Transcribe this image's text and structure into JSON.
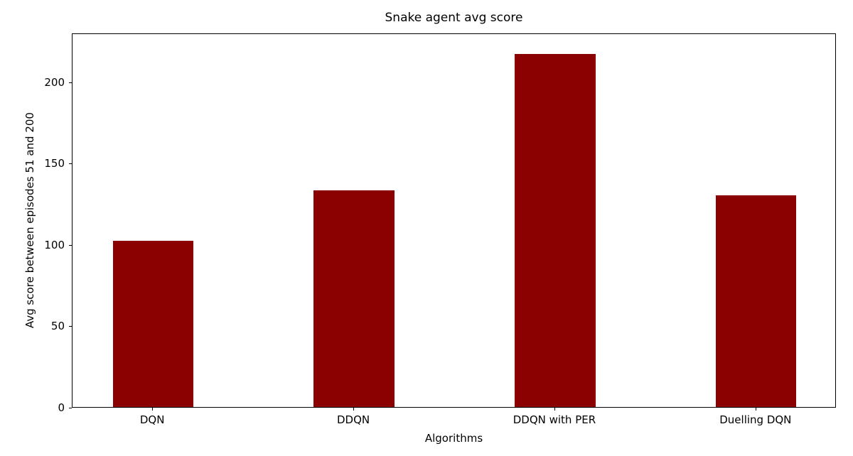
{
  "chart_data": {
    "type": "bar",
    "title": "Snake agent avg score",
    "xlabel": "Algorithms",
    "ylabel": "Avg score between episodes 51 and 200",
    "categories": [
      "DQN",
      "DDQN",
      "DDQN with PER",
      "Duelling DQN"
    ],
    "values": [
      102,
      133,
      217,
      130
    ],
    "yticks": [
      0,
      50,
      100,
      150,
      200
    ],
    "ylim": [
      0,
      230
    ],
    "xlim": [
      -0.4,
      3.4
    ],
    "bar_width": 0.4,
    "bar_color": "#8b0000",
    "axis_color": "#000000",
    "background": "#ffffff",
    "grid": false,
    "legend": "none"
  }
}
